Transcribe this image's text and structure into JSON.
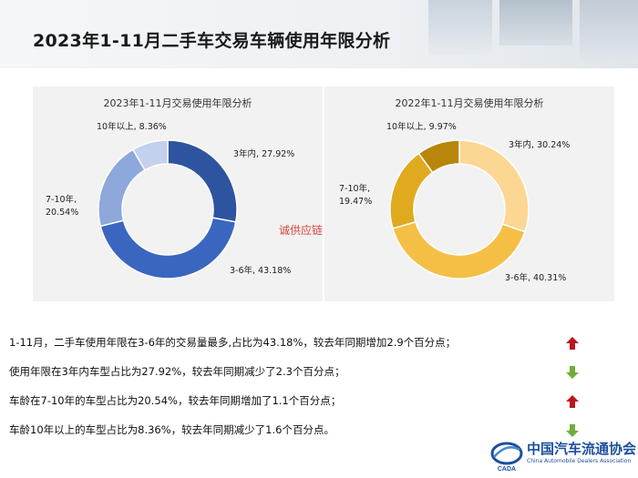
{
  "header": {
    "title": "2023年1-11月二手车交易车辆使用年限分析"
  },
  "watermark": "诚供应链",
  "colors": {
    "left": [
      "#2e549f",
      "#3a66bf",
      "#8ea8dc",
      "#c3d1ee"
    ],
    "right": [
      "#fcd693",
      "#f5bf46",
      "#e0aa1f",
      "#b8860b"
    ],
    "up_arrow": "#b8171d",
    "down_arrow": "#6fae3b"
  },
  "chart_data": [
    {
      "type": "pie",
      "donut": true,
      "title": "2023年1-11月交易使用年限分析",
      "slices": [
        {
          "name": "3年内",
          "value": 27.92,
          "label": "3年内, 27.92%"
        },
        {
          "name": "3-6年",
          "value": 43.18,
          "label": "3-6年, 43.18%"
        },
        {
          "name": "7-10年",
          "value": 20.54,
          "label_lines": [
            "7-10年,",
            "20.54%"
          ]
        },
        {
          "name": "10年以上",
          "value": 8.36,
          "label": "10年以上, 8.36%"
        }
      ]
    },
    {
      "type": "pie",
      "donut": true,
      "title": "2022年1-11月交易使用年限分析",
      "slices": [
        {
          "name": "3年内",
          "value": 30.24,
          "label": "3年内, 30.24%"
        },
        {
          "name": "3-6年",
          "value": 40.31,
          "label": "3-6年, 40.31%"
        },
        {
          "name": "7-10年",
          "value": 19.47,
          "label_lines": [
            "7-10年,",
            "19.47%"
          ]
        },
        {
          "name": "10年以上",
          "value": 9.97,
          "label": "10年以上, 9.97%"
        }
      ]
    }
  ],
  "notes": [
    {
      "text": "1-11月，二手车使用年限在3-6年的交易量最多,占比为43.18%，较去年同期增加2.9个百分点；",
      "trend": "up"
    },
    {
      "text": "使用年限在3年内车型占比为27.92%，较去年同期减少了2.3个百分点；",
      "trend": "down"
    },
    {
      "text": "车龄在7-10年的车型占比为20.54%，较去年同期增加了1.1个百分点；",
      "trend": "up"
    },
    {
      "text": "车龄10年以上的车型占比为8.36%，较去年同期减少了1.6个百分点。",
      "trend": "down"
    }
  ],
  "logo": {
    "name": "中国汽车流通协会",
    "subtitle": "China Automobile Dealers Association",
    "mark_text": "CADA"
  }
}
